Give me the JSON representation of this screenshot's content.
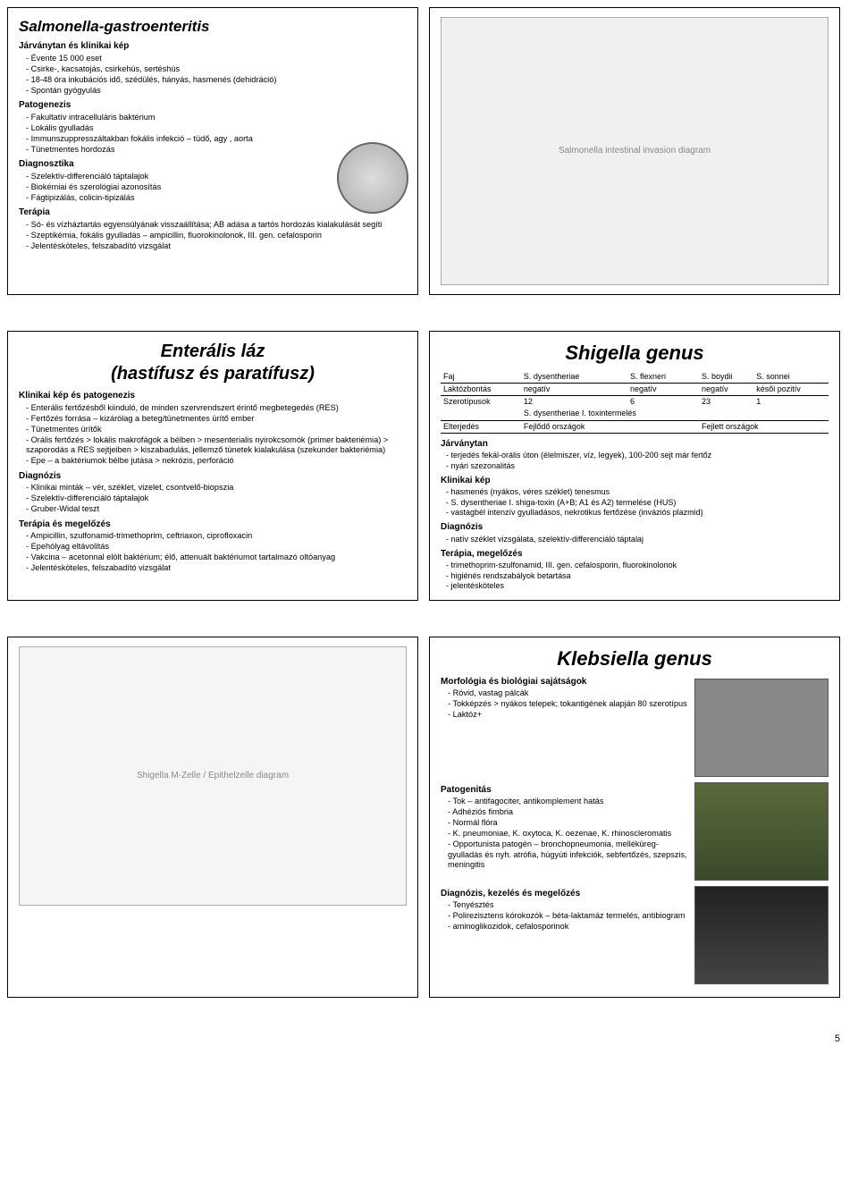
{
  "page_number": "5",
  "slide1": {
    "title": "Salmonella-gastroenteritis",
    "sec1": "Járványtan és klinikai kép",
    "sec1_items": [
      "Évente 15 000 eset",
      "Csirke-, kacsatojás, csirkehús, sertéshús",
      "18-48 óra inkubációs idő, szédülés, hányás, hasmenés (dehidráció)",
      "Spontán gyógyulás"
    ],
    "sec2": "Patogenezis",
    "sec2_items": [
      "Fakultatív intracelluláris baktérium",
      "Lokális gyulladás",
      "Immunszuppresszáltakban fokális infekció – tüdő, agy , aorta",
      "Tünetmentes hordozás"
    ],
    "sec3": "Diagnosztika",
    "sec3_items": [
      "Szelektív-differenciáló táptalajok",
      "Biokémiai és szerológiai azonosítás",
      "Fágtipizálás, colicin-tipizálás"
    ],
    "sec4": "Terápia",
    "sec4_items": [
      "Só- és vízháztartás egyensúlyának visszaállítása; AB adása a tartós hordozás kialakulását segíti",
      "Szeptikémia, fokális gyulladás – ampicillin, fluorokinolonok, III. gen. cefalosporin",
      "Jelentésköteles, felszabadító vizsgálat"
    ]
  },
  "slide2_placeholder": "Salmonella intestinal invasion diagram",
  "slide3": {
    "title": "Enterális láz\n(hastífusz és paratífusz)",
    "sec1": "Klinikai kép és patogenezis",
    "sec1_items": [
      "Enterális fertőzésből kiinduló, de minden szervrendszert érintő megbetegedés (RES)",
      "Fertőzés forrása – kizárólag a beteg/tünetmentes ürítő ember",
      "Tünetmentes ürítők",
      "Orális fertőzés > lokális makrofágok a bélben > mesenterialis nyirokcsomók (primer bakteriémia) > szaporodás a RES sejtjeiben > kiszabadulás, jellemző tünetek kialakulása (szekunder bakteriémia)",
      "Epe – a baktériumok bélbe jutása > nekrózis, perforáció"
    ],
    "sec2": "Diagnózis",
    "sec2_items": [
      "Klinikai minták – vér, széklet, vizelet, csontvelő-biopszia",
      "Szelektív-differenciáló táptalajok",
      "Gruber-Widal teszt"
    ],
    "sec3": "Terápia és megelőzés",
    "sec3_items": [
      "Ampicillin, szulfonamid-trimethoprim, ceftriaxon, ciprofloxacin",
      "Epehólyag eltávolítás",
      "Vakcina – acetonnal elölt baktérium; élő, attenuált baktériumot tartalmazó oltóanyag",
      "Jelentésköteles, felszabadító vizsgálat"
    ]
  },
  "slide4": {
    "title": "Shigella genus",
    "table": {
      "header": [
        "Faj",
        "S. dysentheriae",
        "S. flexneri",
        "S. boydii",
        "S. sonnei"
      ],
      "rows": [
        [
          "Laktózbontás",
          "negatív",
          "negatív",
          "negatív",
          "késői pozitív"
        ],
        [
          "Szerotípusok",
          "12",
          "6",
          "23",
          "1"
        ],
        [
          "",
          "S. dysentheriae I. toxintermelés",
          "",
          "",
          ""
        ],
        [
          "Elterjedés",
          "Fejlődő országok",
          "",
          "Fejlett országok",
          ""
        ]
      ]
    },
    "sec1": "Járványtan",
    "sec1_items": [
      "terjedés fekál-orális úton (élelmiszer, víz, legyek), 100-200 sejt már fertőz",
      "nyári szezonalitás"
    ],
    "sec2": "Klinikai kép",
    "sec2_items": [
      "hasmenés (nyákos, véres széklet) tenesmus",
      "S. dysentheriae I.  shiga-toxin (A+B; A1 és A2) termelése (HUS)",
      "vastagbél intenzív gyulladásos, nekrotikus fertőzése (inváziós plazmid)"
    ],
    "sec3": "Diagnózis",
    "sec3_items": [
      "natív széklet vizsgálata, szelektív-differenciáló táptalaj"
    ],
    "sec4": "Terápia, megelőzés",
    "sec4_items": [
      "trimethoprim-szulfonamid, III. gen. cefalosporin, fluorokinolonok",
      "higiénés rendszabályok betartása",
      "jelentésköteles"
    ]
  },
  "slide5_placeholder": "Shigella M-Zelle / Epithelzelle diagram",
  "slide6": {
    "title": "Klebsiella genus",
    "sec1": "Morfológia és biológiai sajátságok",
    "sec1_items": [
      "Rövid, vastag pálcák",
      "Tokképzés > nyákos telepek; tokantigének alapján 80 szerotípus",
      "Laktóz+"
    ],
    "sec2": "Patogenitás",
    "sec2_items": [
      "Tok – antifagociter, antikomplement hatás",
      "Adhéziós fimbria",
      "Normál flóra",
      "K. pneumoniae, K. oxytoca, K. oezenae, K. rhinoscleromatis",
      "Opportunista patogén – bronchopneumonia, melléküreg-gyulladás és nyh. atrófia, húgyúti infekciók, sebfertőzés, szepszis, meningitis"
    ],
    "sec3": "Diagnózis, kezelés és megelőzés",
    "sec3_items": [
      "Tenyésztés",
      "Polirezisztens kórokozók – béta-laktamáz termelés, antibiogram",
      "aminoglikozidok, cefalosporinok"
    ]
  }
}
